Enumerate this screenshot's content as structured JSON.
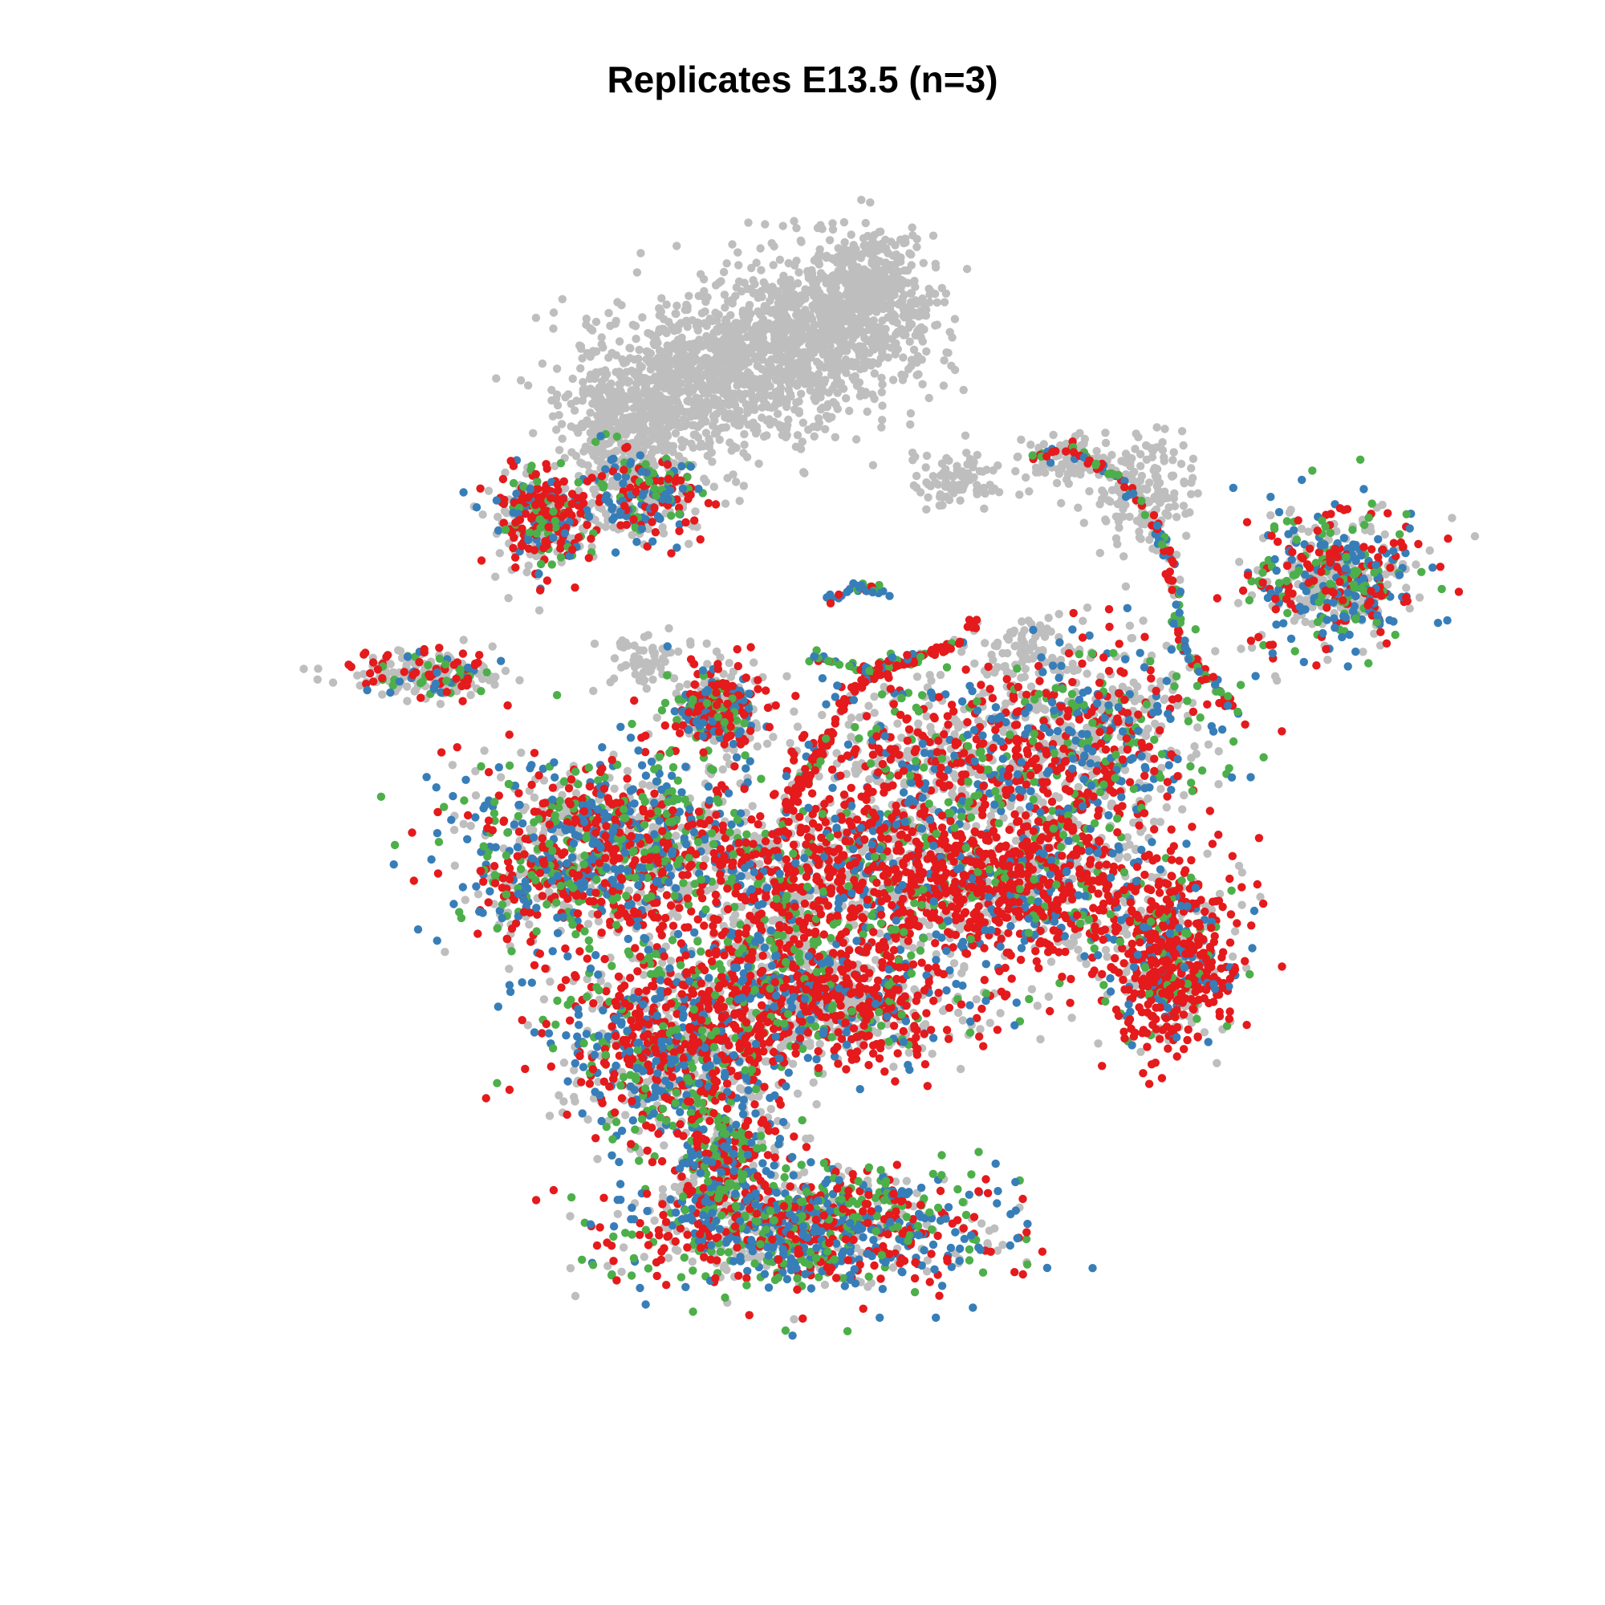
{
  "chart_data": {
    "type": "scatter",
    "title": "Replicates E13.5 (n=3)",
    "xlabel": "",
    "ylabel": "",
    "axes_visible": false,
    "grid": false,
    "legend": "none",
    "colors": {
      "background_cells": "#bebebe",
      "replicate_1": "#e41a1c",
      "replicate_2": "#377eb8",
      "replicate_3": "#4daf4a"
    },
    "xlim": [
      0,
      100
    ],
    "ylim": [
      0,
      100
    ],
    "point_groups": [
      {
        "group": "background",
        "cx": 38,
        "cy": 84,
        "sx": 4.2,
        "sy": 3.2,
        "n": 700,
        "mix": [
          1,
          0,
          0,
          0
        ]
      },
      {
        "group": "background",
        "cx": 47,
        "cy": 88,
        "sx": 4.5,
        "sy": 3.5,
        "n": 900,
        "mix": [
          1,
          0,
          0,
          0
        ]
      },
      {
        "group": "background",
        "cx": 52,
        "cy": 92,
        "sx": 2.5,
        "sy": 2.5,
        "n": 400,
        "mix": [
          1,
          0,
          0,
          0
        ]
      },
      {
        "group": "background",
        "cx": 33,
        "cy": 81,
        "sx": 2.5,
        "sy": 2.0,
        "n": 260,
        "mix": [
          1,
          0,
          0,
          0
        ]
      },
      {
        "group": "background",
        "cx": 59,
        "cy": 76,
        "sx": 1.8,
        "sy": 1.2,
        "n": 90,
        "mix": [
          1,
          0,
          0,
          0
        ]
      },
      {
        "group": "background",
        "cx": 73,
        "cy": 75,
        "sx": 2.2,
        "sy": 2.5,
        "n": 160,
        "mix": [
          1,
          0,
          0,
          0
        ]
      },
      {
        "group": "background",
        "cx": 67,
        "cy": 78,
        "sx": 1.8,
        "sy": 1.2,
        "n": 80,
        "mix": [
          1,
          0,
          0,
          0
        ]
      },
      {
        "group": "background",
        "cx": 35,
        "cy": 61,
        "sx": 1.5,
        "sy": 1.0,
        "n": 60,
        "mix": [
          1,
          0,
          0,
          0
        ]
      },
      {
        "group": "background",
        "cx": 64,
        "cy": 62,
        "sx": 2.0,
        "sy": 1.5,
        "n": 80,
        "mix": [
          1,
          0,
          0,
          0
        ]
      },
      {
        "group": "cluster",
        "cx": 27,
        "cy": 73,
        "sx": 2.0,
        "sy": 2.2,
        "n": 360,
        "mix": [
          0.35,
          0.4,
          0.15,
          0.1
        ]
      },
      {
        "group": "cluster",
        "cx": 35,
        "cy": 75,
        "sx": 2.4,
        "sy": 2.0,
        "n": 320,
        "mix": [
          0.5,
          0.2,
          0.2,
          0.1
        ]
      },
      {
        "group": "cluster",
        "cx": 40,
        "cy": 57,
        "sx": 1.9,
        "sy": 1.9,
        "n": 260,
        "mix": [
          0.4,
          0.25,
          0.2,
          0.15
        ]
      },
      {
        "group": "cluster",
        "cx": 18,
        "cy": 60,
        "sx": 3.0,
        "sy": 1.0,
        "n": 220,
        "mix": [
          0.6,
          0.2,
          0.1,
          0.1
        ]
      },
      {
        "group": "cluster",
        "cx": 88,
        "cy": 68,
        "sx": 3.2,
        "sy": 3.0,
        "n": 520,
        "mix": [
          0.4,
          0.25,
          0.2,
          0.15
        ]
      },
      {
        "group": "cluster",
        "cx": 58,
        "cy": 53,
        "sx": 5.5,
        "sy": 3.5,
        "n": 600,
        "mix": [
          0.45,
          0.3,
          0.15,
          0.1
        ]
      },
      {
        "group": "cluster",
        "cx": 70,
        "cy": 55,
        "sx": 4.5,
        "sy": 4.0,
        "n": 600,
        "mix": [
          0.4,
          0.25,
          0.2,
          0.15
        ]
      },
      {
        "group": "cluster",
        "cx": 32,
        "cy": 45,
        "sx": 6.0,
        "sy": 4.0,
        "n": 1300,
        "mix": [
          0.3,
          0.3,
          0.2,
          0.2
        ]
      },
      {
        "group": "cluster",
        "cx": 50,
        "cy": 44,
        "sx": 6.0,
        "sy": 3.5,
        "n": 900,
        "mix": [
          0.3,
          0.45,
          0.15,
          0.1
        ]
      },
      {
        "group": "cluster",
        "cx": 64,
        "cy": 43,
        "sx": 6.0,
        "sy": 3.5,
        "n": 900,
        "mix": [
          0.3,
          0.5,
          0.12,
          0.08
        ]
      },
      {
        "group": "cluster",
        "cx": 75,
        "cy": 36,
        "sx": 2.5,
        "sy": 3.5,
        "n": 650,
        "mix": [
          0.2,
          0.6,
          0.12,
          0.08
        ]
      },
      {
        "group": "cluster",
        "cx": 47,
        "cy": 33,
        "sx": 7.0,
        "sy": 2.8,
        "n": 1100,
        "mix": [
          0.3,
          0.45,
          0.15,
          0.1
        ]
      },
      {
        "group": "cluster",
        "cx": 37,
        "cy": 28,
        "sx": 4.5,
        "sy": 3.5,
        "n": 750,
        "mix": [
          0.3,
          0.3,
          0.25,
          0.15
        ]
      },
      {
        "group": "cluster",
        "cx": 41,
        "cy": 20,
        "sx": 2.0,
        "sy": 3.0,
        "n": 300,
        "mix": [
          0.3,
          0.3,
          0.2,
          0.2
        ]
      },
      {
        "group": "cluster",
        "cx": 47,
        "cy": 14,
        "sx": 7.0,
        "sy": 2.5,
        "n": 1100,
        "mix": [
          0.25,
          0.25,
          0.3,
          0.2
        ]
      },
      {
        "group": "cluster",
        "cx": 45,
        "cy": 38,
        "sx": 2.0,
        "sy": 1.5,
        "n": 120,
        "mix": [
          0.5,
          0.15,
          0.15,
          0.2
        ]
      }
    ],
    "trajectories": [
      {
        "path": [
          [
            64.5,
            77.7
          ],
          [
            67,
            79
          ],
          [
            71,
            76.5
          ],
          [
            74,
            73
          ],
          [
            75.3,
            69
          ],
          [
            75.8,
            64
          ],
          [
            76.5,
            61.5
          ],
          [
            79,
            58.5
          ],
          [
            80.5,
            56.7
          ]
        ],
        "n": 170,
        "mix": [
          0.2,
          0.35,
          0.25,
          0.2
        ]
      },
      {
        "path": [
          [
            45.5,
            48.5
          ],
          [
            47,
            51
          ],
          [
            49,
            55
          ],
          [
            50.5,
            58.5
          ],
          [
            53,
            60.2
          ],
          [
            56,
            61.5
          ],
          [
            58.5,
            62.5
          ],
          [
            60.5,
            64.5
          ]
        ],
        "n": 150,
        "mix": [
          0.1,
          0.8,
          0.05,
          0.05
        ]
      },
      {
        "path": [
          [
            47.5,
            61.5
          ],
          [
            52,
            60.5
          ],
          [
            56,
            61.5
          ]
        ],
        "n": 50,
        "mix": [
          0,
          0.3,
          0.4,
          0.3
        ]
      },
      {
        "path": [
          [
            56,
            41
          ],
          [
            62,
            44
          ],
          [
            67,
            48
          ],
          [
            72,
            53
          ]
        ],
        "n": 80,
        "mix": [
          0.2,
          0.6,
          0.1,
          0.1
        ]
      },
      {
        "path": [
          [
            48.5,
            66
          ],
          [
            51,
            67.5
          ],
          [
            53.5,
            66.5
          ]
        ],
        "n": 30,
        "mix": [
          0.1,
          0.35,
          0.25,
          0.3
        ]
      },
      {
        "path": [
          [
            86.5,
            71.5
          ],
          [
            89.5,
            68
          ],
          [
            91.5,
            64.5
          ]
        ],
        "n": 40,
        "mix": [
          0.1,
          0.3,
          0.3,
          0.3
        ]
      }
    ],
    "rings": [
      {
        "cx": 40.5,
        "cy": 57.0,
        "r": 2.3,
        "n": 110,
        "mix": [
          0.2,
          0.35,
          0.25,
          0.2
        ]
      }
    ]
  }
}
